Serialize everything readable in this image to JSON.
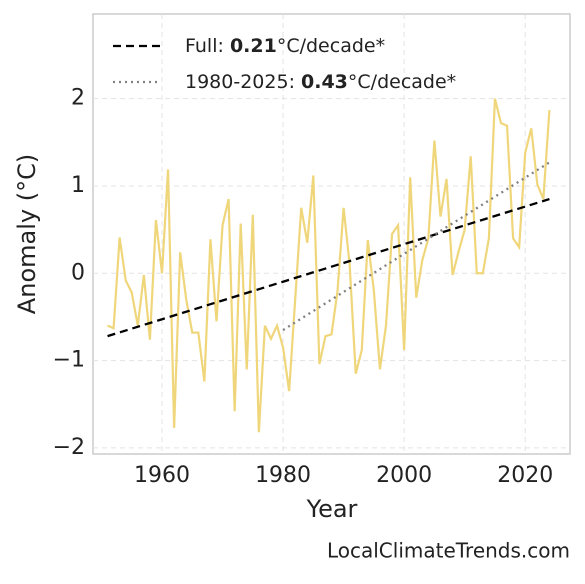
{
  "chart_data": {
    "type": "line",
    "xlabel": "Year",
    "ylabel": "Anomaly (°C)",
    "credit": "LocalClimateTrends.com",
    "xlim": [
      1948.6,
      2027.4
    ],
    "xticks": [
      1960,
      1980,
      2000,
      2020
    ],
    "ylim": [
      -2.07,
      2.97
    ],
    "yticks": [
      {
        "value": -2,
        "label": "−2"
      },
      {
        "value": -1,
        "label": "−1"
      },
      0,
      1,
      2
    ],
    "grid": true,
    "legend": "upper left",
    "series": [
      {
        "color": "#f0d67a",
        "style": "solid",
        "x": [
          1951,
          1952,
          1953,
          1954,
          1955,
          1956,
          1957,
          1958,
          1959,
          1960,
          1961,
          1962,
          1963,
          1964,
          1965,
          1966,
          1967,
          1968,
          1969,
          1970,
          1971,
          1972,
          1973,
          1974,
          1975,
          1976,
          1977,
          1978,
          1979,
          1980,
          1981,
          1982,
          1983,
          1984,
          1985,
          1986,
          1987,
          1988,
          1989,
          1990,
          1991,
          1992,
          1993,
          1994,
          1995,
          1996,
          1997,
          1998,
          1999,
          2000,
          2001,
          2002,
          2003,
          2004,
          2005,
          2006,
          2007,
          2008,
          2009,
          2010,
          2011,
          2012,
          2013,
          2014,
          2015,
          2016,
          2017,
          2018,
          2019,
          2020,
          2021,
          2022,
          2023,
          2024
        ],
        "values": [
          -0.6,
          -0.63,
          0.41,
          -0.08,
          -0.22,
          -0.6,
          -0.02,
          -0.76,
          0.61,
          0.0,
          1.19,
          -1.77,
          0.24,
          -0.3,
          -0.68,
          -0.68,
          -1.24,
          0.39,
          -0.55,
          0.55,
          0.85,
          -1.58,
          0.57,
          -1.1,
          0.67,
          -1.82,
          -0.6,
          -0.75,
          -0.6,
          -0.85,
          -1.35,
          -0.3,
          0.75,
          0.35,
          1.12,
          -1.04,
          -0.72,
          -0.7,
          -0.2,
          0.75,
          0.1,
          -1.15,
          -0.88,
          0.38,
          -0.2,
          -1.1,
          -0.6,
          0.45,
          0.55,
          -0.88,
          1.1,
          -0.28,
          0.15,
          0.4,
          1.52,
          0.65,
          1.08,
          -0.02,
          0.25,
          0.5,
          1.34,
          0.0,
          0.0,
          0.4,
          2.0,
          1.72,
          1.69,
          0.4,
          0.3,
          1.38,
          1.66,
          1.02,
          0.85,
          1.87
        ]
      },
      {
        "name": "Full:",
        "rate": "0.21",
        "unit": "°C/decade*",
        "color": "#000000",
        "style": "dashed",
        "x": [
          1951,
          2024
        ],
        "values": [
          -0.72,
          0.85
        ]
      },
      {
        "name": "1980-2025:",
        "rate": "0.43",
        "unit": "°C/decade*",
        "color": "#808080",
        "style": "dotted",
        "x": [
          1980,
          2024
        ],
        "values": [
          -0.65,
          1.27
        ]
      }
    ]
  }
}
